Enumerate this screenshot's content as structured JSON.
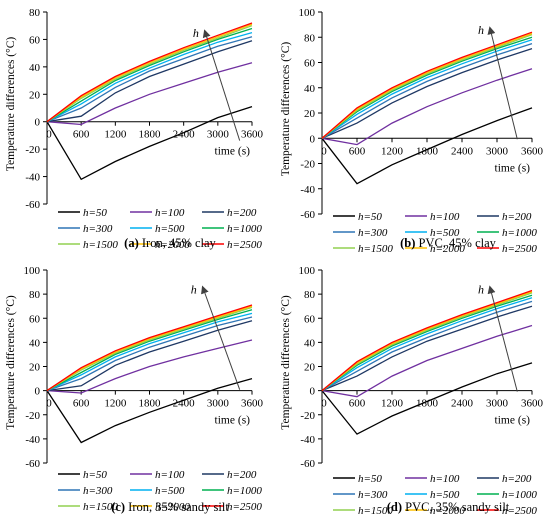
{
  "chart_data": [
    {
      "type": "line",
      "caption_label": "(a)",
      "caption_text": " Iron, 45% clay",
      "ylabel": "Temperature differences (°C)",
      "xlabel": "time (s)",
      "xlim": [
        0,
        3600
      ],
      "ylim": [
        -60,
        80
      ],
      "xticks": [
        "0",
        "600",
        "1200",
        "1800",
        "2400",
        "3000",
        "3600"
      ],
      "yticks": [
        "-60",
        "-40",
        "-20",
        "0",
        "20",
        "40",
        "60",
        "80"
      ],
      "ytick_values": [
        -60,
        -40,
        -20,
        0,
        20,
        40,
        60,
        80
      ],
      "annotation": "h",
      "grid": false,
      "legend_position": "bottom",
      "x": [
        0,
        600,
        1200,
        1800,
        2400,
        3000,
        3600
      ],
      "series": [
        {
          "name": "h=50",
          "color": "#000000",
          "values": [
            0,
            -42,
            -29,
            -18,
            -8,
            3,
            11
          ]
        },
        {
          "name": "h=100",
          "color": "#7030a0",
          "values": [
            0,
            -2,
            10,
            20,
            28,
            36,
            43
          ]
        },
        {
          "name": "h=200",
          "color": "#1f3864",
          "values": [
            0,
            4,
            21,
            33,
            42,
            51,
            59
          ]
        },
        {
          "name": "h=300",
          "color": "#2f75b5",
          "values": [
            0,
            10,
            25,
            37,
            46,
            55,
            62
          ]
        },
        {
          "name": "h=500",
          "color": "#00b0f0",
          "values": [
            0,
            13,
            28,
            39,
            49,
            58,
            65
          ]
        },
        {
          "name": "h=1000",
          "color": "#00b050",
          "values": [
            0,
            15,
            30,
            41,
            51,
            60,
            68
          ]
        },
        {
          "name": "h=1500",
          "color": "#92d050",
          "values": [
            0,
            17,
            31,
            42,
            52,
            61,
            70
          ]
        },
        {
          "name": "h=2000",
          "color": "#ffc000",
          "values": [
            0,
            18,
            32,
            43,
            53,
            62,
            71
          ]
        },
        {
          "name": "h=2500",
          "color": "#ff0000",
          "values": [
            0,
            19,
            33,
            44,
            54,
            63,
            72
          ]
        }
      ]
    },
    {
      "type": "line",
      "caption_label": "(b)",
      "caption_text": " PVC, 45% clay",
      "ylabel": "Temperature differences (°C)",
      "xlabel": "time (s)",
      "xlim": [
        0,
        3600
      ],
      "ylim": [
        -60,
        100
      ],
      "xticks": [
        "0",
        "600",
        "1200",
        "1800",
        "2400",
        "3000",
        "3600"
      ],
      "yticks": [
        "-60",
        "-40",
        "-20",
        "0",
        "20",
        "40",
        "60",
        "80",
        "100"
      ],
      "ytick_values": [
        -60,
        -40,
        -20,
        0,
        20,
        40,
        60,
        80,
        100
      ],
      "annotation": "h",
      "grid": false,
      "legend_position": "bottom",
      "x": [
        0,
        600,
        1200,
        1800,
        2400,
        3000,
        3600
      ],
      "series": [
        {
          "name": "h=50",
          "color": "#000000",
          "values": [
            0,
            -36,
            -21,
            -9,
            3,
            14,
            24
          ]
        },
        {
          "name": "h=100",
          "color": "#7030a0",
          "values": [
            0,
            -5,
            12,
            25,
            36,
            46,
            55
          ]
        },
        {
          "name": "h=200",
          "color": "#1f3864",
          "values": [
            0,
            12,
            28,
            41,
            52,
            62,
            71
          ]
        },
        {
          "name": "h=300",
          "color": "#2f75b5",
          "values": [
            0,
            16,
            32,
            45,
            56,
            66,
            75
          ]
        },
        {
          "name": "h=500",
          "color": "#00b0f0",
          "values": [
            0,
            19,
            35,
            48,
            59,
            69,
            78
          ]
        },
        {
          "name": "h=1000",
          "color": "#00b050",
          "values": [
            0,
            21,
            37,
            50,
            61,
            71,
            80
          ]
        },
        {
          "name": "h=1500",
          "color": "#92d050",
          "values": [
            0,
            22,
            38,
            51,
            62,
            72,
            82
          ]
        },
        {
          "name": "h=2000",
          "color": "#ffc000",
          "values": [
            0,
            23,
            39,
            52,
            63,
            73,
            83
          ]
        },
        {
          "name": "h=2500",
          "color": "#ff0000",
          "values": [
            0,
            24,
            40,
            53,
            64,
            74,
            84
          ]
        }
      ]
    },
    {
      "type": "line",
      "caption_label": "(c)",
      "caption_text": " Iron, 35% sandy silt",
      "ylabel": "Temperature differences (°C)",
      "xlabel": "time (s)",
      "xlim": [
        0,
        3600
      ],
      "ylim": [
        -60,
        100
      ],
      "xticks": [
        "0",
        "600",
        "1200",
        "1800",
        "2400",
        "3000",
        "3600"
      ],
      "yticks": [
        "-60",
        "-40",
        "-20",
        "0",
        "20",
        "40",
        "60",
        "80",
        "100"
      ],
      "ytick_values": [
        -60,
        -40,
        -20,
        0,
        20,
        40,
        60,
        80,
        100
      ],
      "annotation": "h",
      "grid": false,
      "legend_position": "bottom",
      "x": [
        0,
        600,
        1200,
        1800,
        2400,
        3000,
        3600
      ],
      "series": [
        {
          "name": "h=50",
          "color": "#000000",
          "values": [
            0,
            -43,
            -29,
            -18,
            -8,
            2,
            10
          ]
        },
        {
          "name": "h=100",
          "color": "#7030a0",
          "values": [
            0,
            -2,
            10,
            20,
            28,
            35,
            42
          ]
        },
        {
          "name": "h=200",
          "color": "#1f3864",
          "values": [
            0,
            4,
            21,
            32,
            41,
            50,
            58
          ]
        },
        {
          "name": "h=300",
          "color": "#2f75b5",
          "values": [
            0,
            10,
            25,
            36,
            45,
            54,
            61
          ]
        },
        {
          "name": "h=500",
          "color": "#00b0f0",
          "values": [
            0,
            13,
            28,
            39,
            48,
            57,
            64
          ]
        },
        {
          "name": "h=1000",
          "color": "#00b050",
          "values": [
            0,
            15,
            30,
            41,
            50,
            59,
            67
          ]
        },
        {
          "name": "h=1500",
          "color": "#92d050",
          "values": [
            0,
            17,
            31,
            42,
            51,
            60,
            69
          ]
        },
        {
          "name": "h=2000",
          "color": "#ffc000",
          "values": [
            0,
            18,
            32,
            43,
            52,
            61,
            70
          ]
        },
        {
          "name": "h=2500",
          "color": "#ff0000",
          "values": [
            0,
            19,
            33,
            44,
            53,
            62,
            71
          ]
        }
      ]
    },
    {
      "type": "line",
      "caption_label": "(d)",
      "caption_text": " PVC, 35% sandy silt",
      "ylabel": "Temperature differences (°C)",
      "xlabel": "time (s)",
      "xlim": [
        0,
        3600
      ],
      "ylim": [
        -60,
        100
      ],
      "xticks": [
        "0",
        "600",
        "1200",
        "1800",
        "2400",
        "3000",
        "3600"
      ],
      "yticks": [
        "-60",
        "-40",
        "-20",
        "0",
        "20",
        "40",
        "60",
        "80",
        "100"
      ],
      "ytick_values": [
        -60,
        -40,
        -20,
        0,
        20,
        40,
        60,
        80,
        100
      ],
      "annotation": "h",
      "grid": false,
      "legend_position": "bottom",
      "x": [
        0,
        600,
        1200,
        1800,
        2400,
        3000,
        3600
      ],
      "series": [
        {
          "name": "h=50",
          "color": "#000000",
          "values": [
            0,
            -36,
            -21,
            -9,
            3,
            14,
            23
          ]
        },
        {
          "name": "h=100",
          "color": "#7030a0",
          "values": [
            0,
            -5,
            12,
            25,
            35,
            45,
            54
          ]
        },
        {
          "name": "h=200",
          "color": "#1f3864",
          "values": [
            0,
            12,
            28,
            41,
            51,
            61,
            70
          ]
        },
        {
          "name": "h=300",
          "color": "#2f75b5",
          "values": [
            0,
            16,
            32,
            44,
            55,
            65,
            74
          ]
        },
        {
          "name": "h=500",
          "color": "#00b0f0",
          "values": [
            0,
            19,
            35,
            47,
            58,
            68,
            77
          ]
        },
        {
          "name": "h=1000",
          "color": "#00b050",
          "values": [
            0,
            21,
            37,
            49,
            60,
            70,
            79
          ]
        },
        {
          "name": "h=1500",
          "color": "#92d050",
          "values": [
            0,
            22,
            38,
            50,
            61,
            71,
            81
          ]
        },
        {
          "name": "h=2000",
          "color": "#ffc000",
          "values": [
            0,
            23,
            39,
            51,
            62,
            72,
            82
          ]
        },
        {
          "name": "h=2500",
          "color": "#ff0000",
          "values": [
            0,
            24,
            40,
            52,
            63,
            73,
            83
          ]
        }
      ]
    }
  ]
}
